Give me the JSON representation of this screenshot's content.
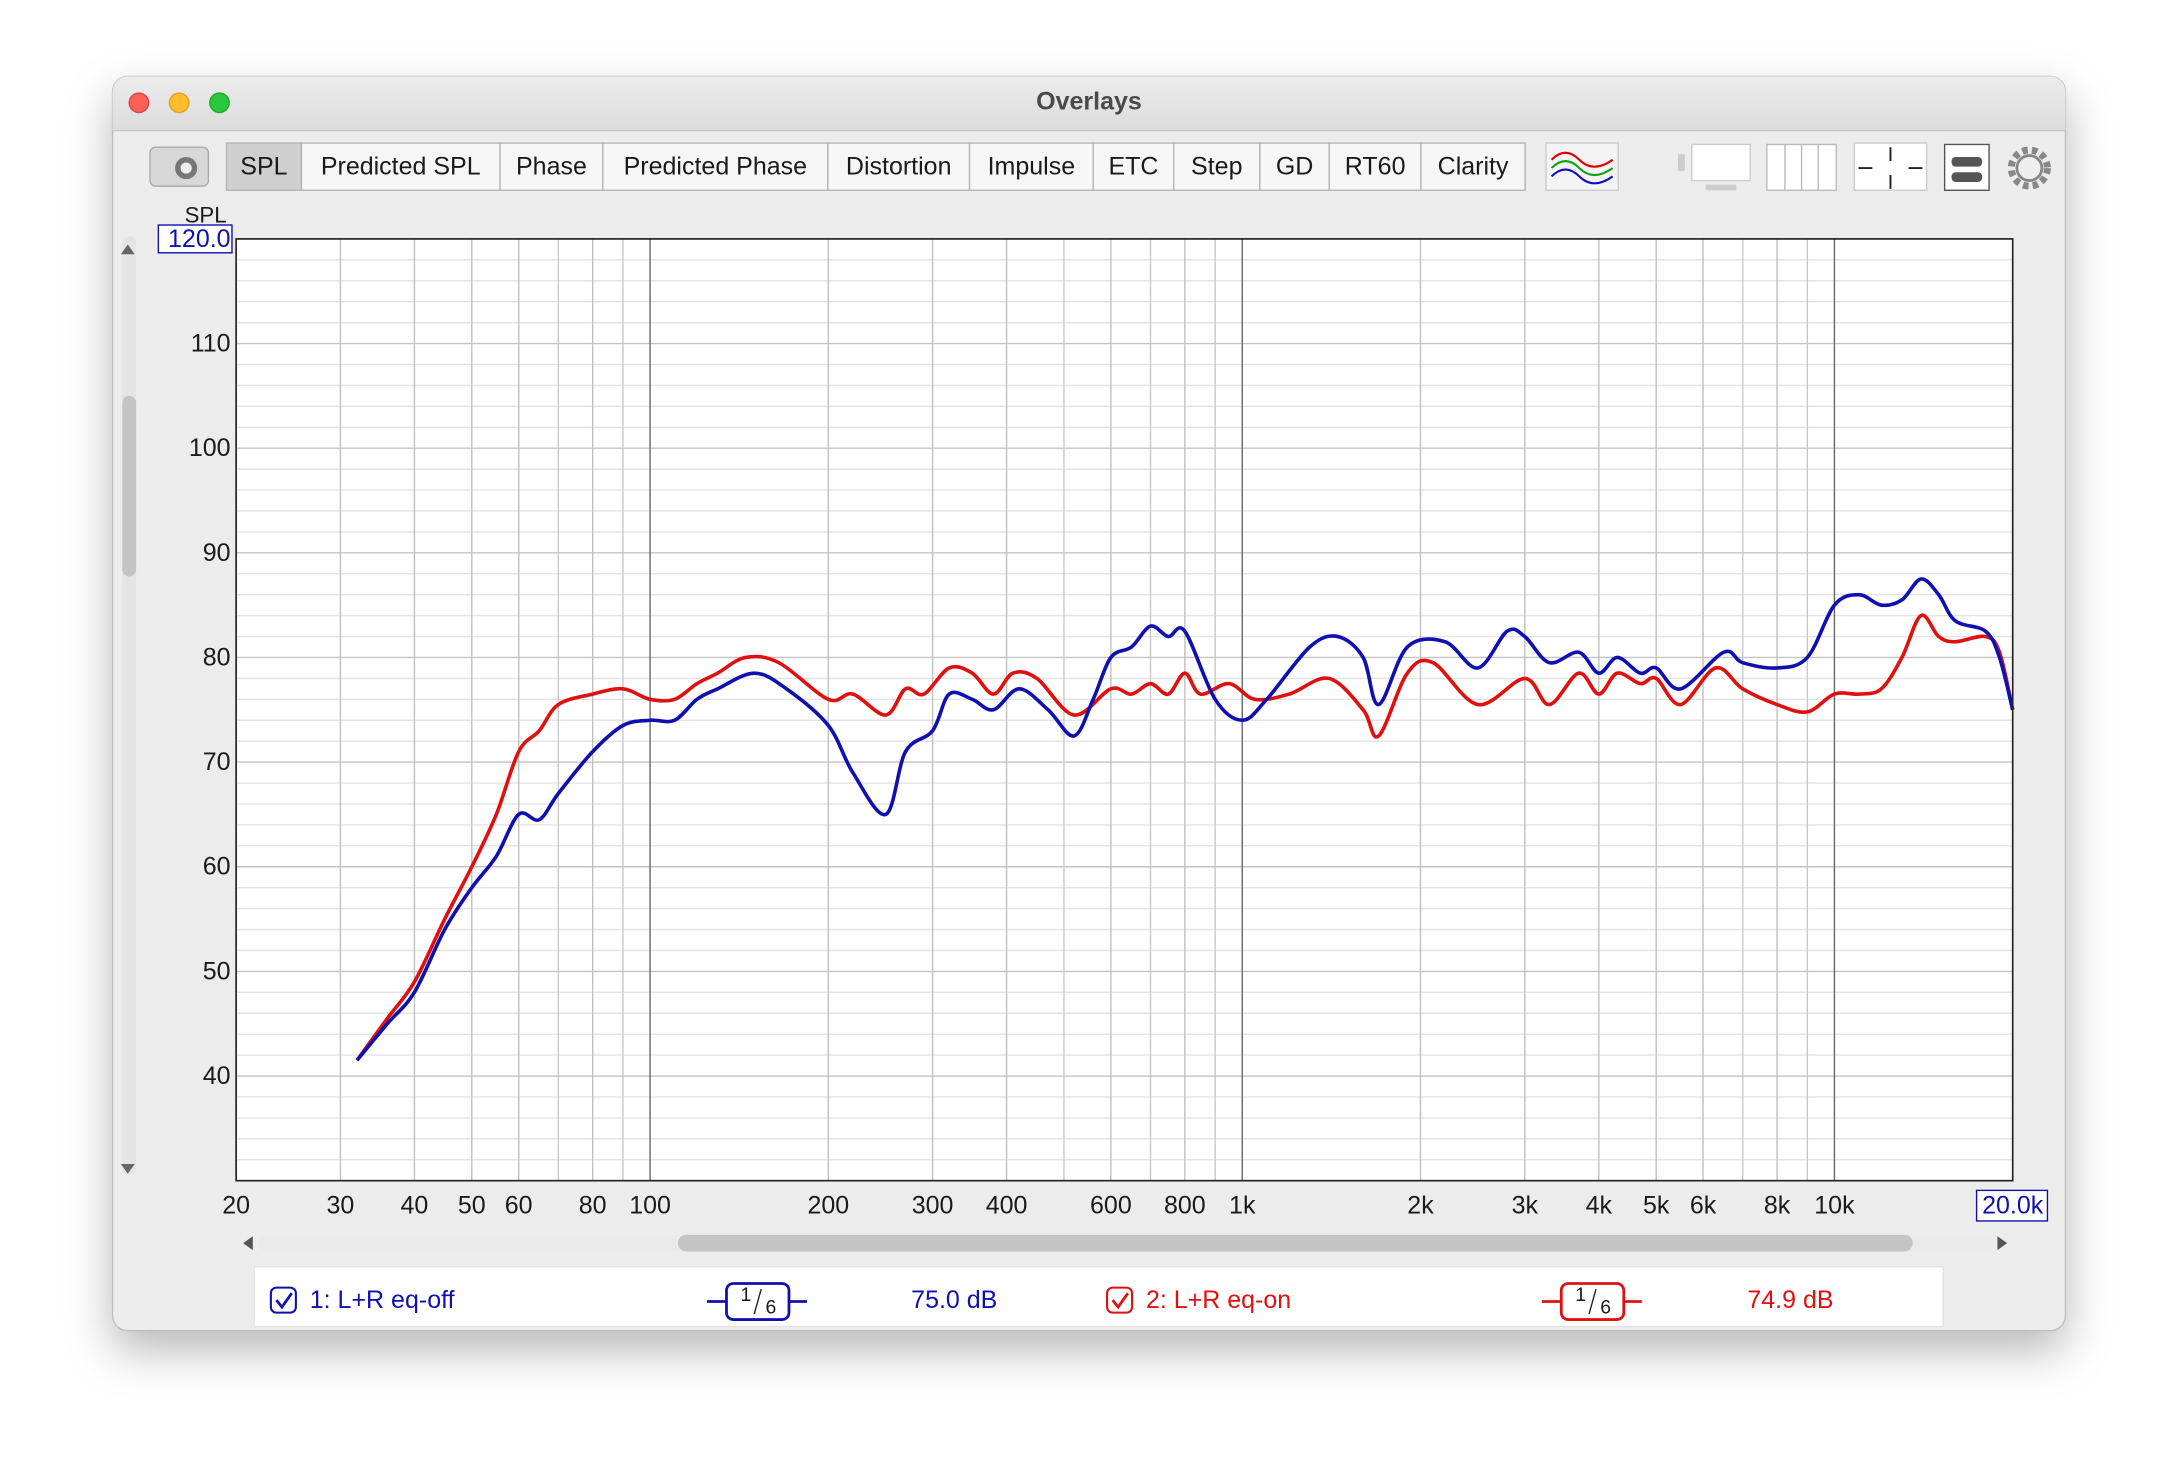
{
  "window": {
    "title": "Overlays"
  },
  "tabs": [
    "SPL",
    "Predicted SPL",
    "Phase",
    "Predicted Phase",
    "Distortion",
    "Impulse",
    "ETC",
    "Step",
    "GD",
    "RT60",
    "Clarity"
  ],
  "chart_data": {
    "type": "line",
    "ylabel": "SPL",
    "xscale": "log",
    "grid": true,
    "xlim": [
      20,
      20000
    ],
    "ylim": [
      30,
      120
    ],
    "xticks": [
      20,
      30,
      40,
      50,
      60,
      80,
      100,
      200,
      300,
      400,
      600,
      800,
      {
        "value": 1000,
        "label": "1k"
      },
      {
        "value": 2000,
        "label": "2k"
      },
      {
        "value": 3000,
        "label": "3k"
      },
      {
        "value": 4000,
        "label": "4k"
      },
      {
        "value": 5000,
        "label": "5k"
      },
      {
        "value": 6000,
        "label": "6k"
      },
      {
        "value": 8000,
        "label": "8k"
      },
      {
        "value": 10000,
        "label": "10k"
      },
      {
        "value": 20000,
        "label": "20.0k"
      }
    ],
    "x_minor_grid": [
      70,
      90,
      500,
      700,
      900,
      7000,
      9000
    ],
    "yticks": [
      40,
      50,
      60,
      70,
      80,
      90,
      100,
      110,
      {
        "value": 120,
        "label": "120.0"
      }
    ],
    "y_minor_grid": [
      32,
      34,
      36,
      38,
      42,
      44,
      46,
      48,
      52,
      54,
      56,
      58,
      62,
      64,
      66,
      68,
      72,
      74,
      76,
      78,
      82,
      84,
      86,
      88,
      92,
      94,
      96,
      98,
      102,
      104,
      106,
      108,
      112,
      114,
      116,
      118
    ],
    "series": [
      {
        "name": "1: L+R eq-off",
        "color": "#1010b0",
        "x": [
          32,
          36,
          40,
          45,
          50,
          55,
          60,
          65,
          70,
          80,
          90,
          100,
          110,
          120,
          130,
          150,
          170,
          200,
          220,
          250,
          270,
          300,
          320,
          350,
          380,
          420,
          470,
          520,
          560,
          600,
          650,
          700,
          750,
          800,
          900,
          1000,
          1100,
          1300,
          1450,
          1600,
          1700,
          1900,
          2200,
          2500,
          2800,
          3000,
          3300,
          3700,
          4000,
          4300,
          4700,
          5000,
          5500,
          6500,
          7000,
          8000,
          9000,
          10000,
          11000,
          12000,
          13000,
          14000,
          15000,
          16000,
          18000,
          19000,
          20000
        ],
        "values": [
          41.5,
          45,
          48,
          54,
          58,
          61,
          65,
          64.5,
          67,
          71,
          73.5,
          74,
          74,
          76,
          77,
          78.5,
          77,
          73.5,
          69,
          65,
          71,
          73,
          76.5,
          76,
          75,
          77,
          75,
          72.5,
          76,
          80,
          81,
          83,
          82,
          82.5,
          76,
          74,
          76,
          81,
          82,
          80,
          75.5,
          81,
          81.5,
          79,
          82.5,
          82,
          79.5,
          80.5,
          78.5,
          80,
          78.5,
          79,
          77,
          80.5,
          79.5,
          79,
          80,
          85,
          86,
          85,
          85.5,
          87.5,
          86,
          83.5,
          82.5,
          80,
          75
        ]
      },
      {
        "name": "2: L+R eq-on",
        "color": "#e01010",
        "x": [
          32,
          36,
          40,
          45,
          50,
          55,
          60,
          65,
          70,
          80,
          90,
          100,
          110,
          120,
          130,
          145,
          165,
          200,
          220,
          250,
          270,
          290,
          320,
          350,
          380,
          410,
          450,
          520,
          600,
          650,
          700,
          750,
          800,
          850,
          950,
          1050,
          1200,
          1400,
          1600,
          1700,
          1900,
          2100,
          2500,
          3000,
          3300,
          3700,
          4000,
          4300,
          4700,
          5000,
          5500,
          6300,
          7000,
          8000,
          9000,
          10000,
          11000,
          12000,
          13000,
          14000,
          15000,
          16000,
          18000,
          19000,
          20000
        ],
        "values": [
          41.5,
          45.5,
          49,
          55,
          60,
          65,
          71,
          73,
          75.5,
          76.5,
          77,
          76,
          76,
          77.5,
          78.5,
          80,
          79.5,
          76,
          76.5,
          74.5,
          77,
          76.5,
          79,
          78.5,
          76.5,
          78.5,
          78,
          74.5,
          77,
          76.5,
          77.5,
          76.5,
          78.5,
          76.5,
          77.5,
          76,
          76.5,
          78,
          75,
          72.5,
          78.5,
          79.5,
          75.5,
          78,
          75.5,
          78.5,
          76.5,
          78.5,
          77.5,
          78,
          75.5,
          79,
          77,
          75.5,
          74.8,
          76.5,
          76.5,
          77,
          80,
          84,
          82,
          81.5,
          82,
          80.5,
          75
        ]
      }
    ]
  },
  "legend": [
    {
      "smoothing_num": "1",
      "smoothing_den": "6",
      "level": "75.0 dB"
    },
    {
      "smoothing_num": "1",
      "smoothing_den": "6",
      "level": "74.9 dB"
    }
  ]
}
